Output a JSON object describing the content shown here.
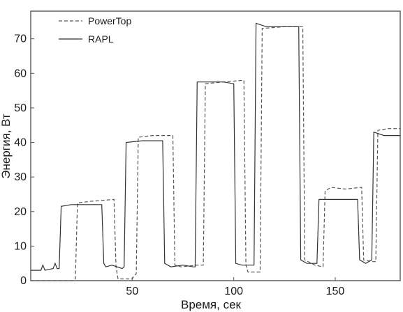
{
  "chart_data": {
    "type": "line",
    "xlabel": "Время, сек",
    "ylabel": "Энергия, Вт",
    "xlim": [
      0,
      182
    ],
    "ylim": [
      0,
      78
    ],
    "x_ticks": [
      50,
      100,
      150
    ],
    "y_ticks": [
      0,
      10,
      20,
      30,
      40,
      50,
      60,
      70
    ],
    "grid": false,
    "legend_position": "top-left",
    "series": [
      {
        "name": "PowerTop",
        "style": "dashed",
        "color": "#555555",
        "points": [
          [
            0,
            0
          ],
          [
            21,
            0
          ],
          [
            22,
            0.5
          ],
          [
            23,
            22.5
          ],
          [
            30,
            23
          ],
          [
            41,
            23.5
          ],
          [
            42,
            4
          ],
          [
            43,
            0.5
          ],
          [
            50,
            0.5
          ],
          [
            51,
            1.5
          ],
          [
            52,
            2
          ],
          [
            53,
            41.5
          ],
          [
            60,
            42
          ],
          [
            70,
            42
          ],
          [
            71,
            4.5
          ],
          [
            74,
            4
          ],
          [
            82,
            4.5
          ],
          [
            85,
            4.5
          ],
          [
            86,
            57
          ],
          [
            95,
            57.5
          ],
          [
            105,
            58
          ],
          [
            106,
            4.5
          ],
          [
            107,
            2.5
          ],
          [
            110,
            2.5
          ],
          [
            113,
            2.5
          ],
          [
            114,
            73
          ],
          [
            125,
            73.5
          ],
          [
            134,
            73.5
          ],
          [
            135,
            6
          ],
          [
            140,
            4.5
          ],
          [
            144,
            4
          ],
          [
            145,
            26
          ],
          [
            148,
            27
          ],
          [
            155,
            26.5
          ],
          [
            163,
            27
          ],
          [
            164,
            6
          ],
          [
            168,
            5.5
          ],
          [
            170,
            5.5
          ],
          [
            171,
            43.5
          ],
          [
            176,
            44
          ],
          [
            182,
            44
          ]
        ]
      },
      {
        "name": "RAPL",
        "style": "solid",
        "color": "#333333",
        "points": [
          [
            0,
            3
          ],
          [
            5,
            3
          ],
          [
            6,
            4.5
          ],
          [
            7,
            3
          ],
          [
            11,
            3.5
          ],
          [
            12,
            5
          ],
          [
            13,
            3.5
          ],
          [
            14,
            3.5
          ],
          [
            15,
            21.5
          ],
          [
            20,
            22
          ],
          [
            30,
            22
          ],
          [
            35,
            22
          ],
          [
            36,
            5
          ],
          [
            37,
            4
          ],
          [
            40,
            4.5
          ],
          [
            45,
            3.5
          ],
          [
            46,
            4
          ],
          [
            47,
            40
          ],
          [
            55,
            40.5
          ],
          [
            65,
            40.5
          ],
          [
            66,
            5
          ],
          [
            69,
            4
          ],
          [
            75,
            4.5
          ],
          [
            80,
            4
          ],
          [
            81,
            4
          ],
          [
            82,
            57.5
          ],
          [
            88,
            57.5
          ],
          [
            95,
            57.5
          ],
          [
            100,
            57
          ],
          [
            101,
            5
          ],
          [
            104,
            4.5
          ],
          [
            110,
            4.5
          ],
          [
            111,
            74.5
          ],
          [
            116,
            73.5
          ],
          [
            124,
            73.5
          ],
          [
            132,
            73.5
          ],
          [
            133,
            6
          ],
          [
            136,
            5
          ],
          [
            141,
            5
          ],
          [
            142,
            23.5
          ],
          [
            150,
            23.5
          ],
          [
            161,
            23.5
          ],
          [
            162,
            6
          ],
          [
            165,
            5
          ],
          [
            168,
            6
          ],
          [
            169,
            43
          ],
          [
            174,
            42
          ],
          [
            182,
            42
          ]
        ]
      }
    ]
  }
}
